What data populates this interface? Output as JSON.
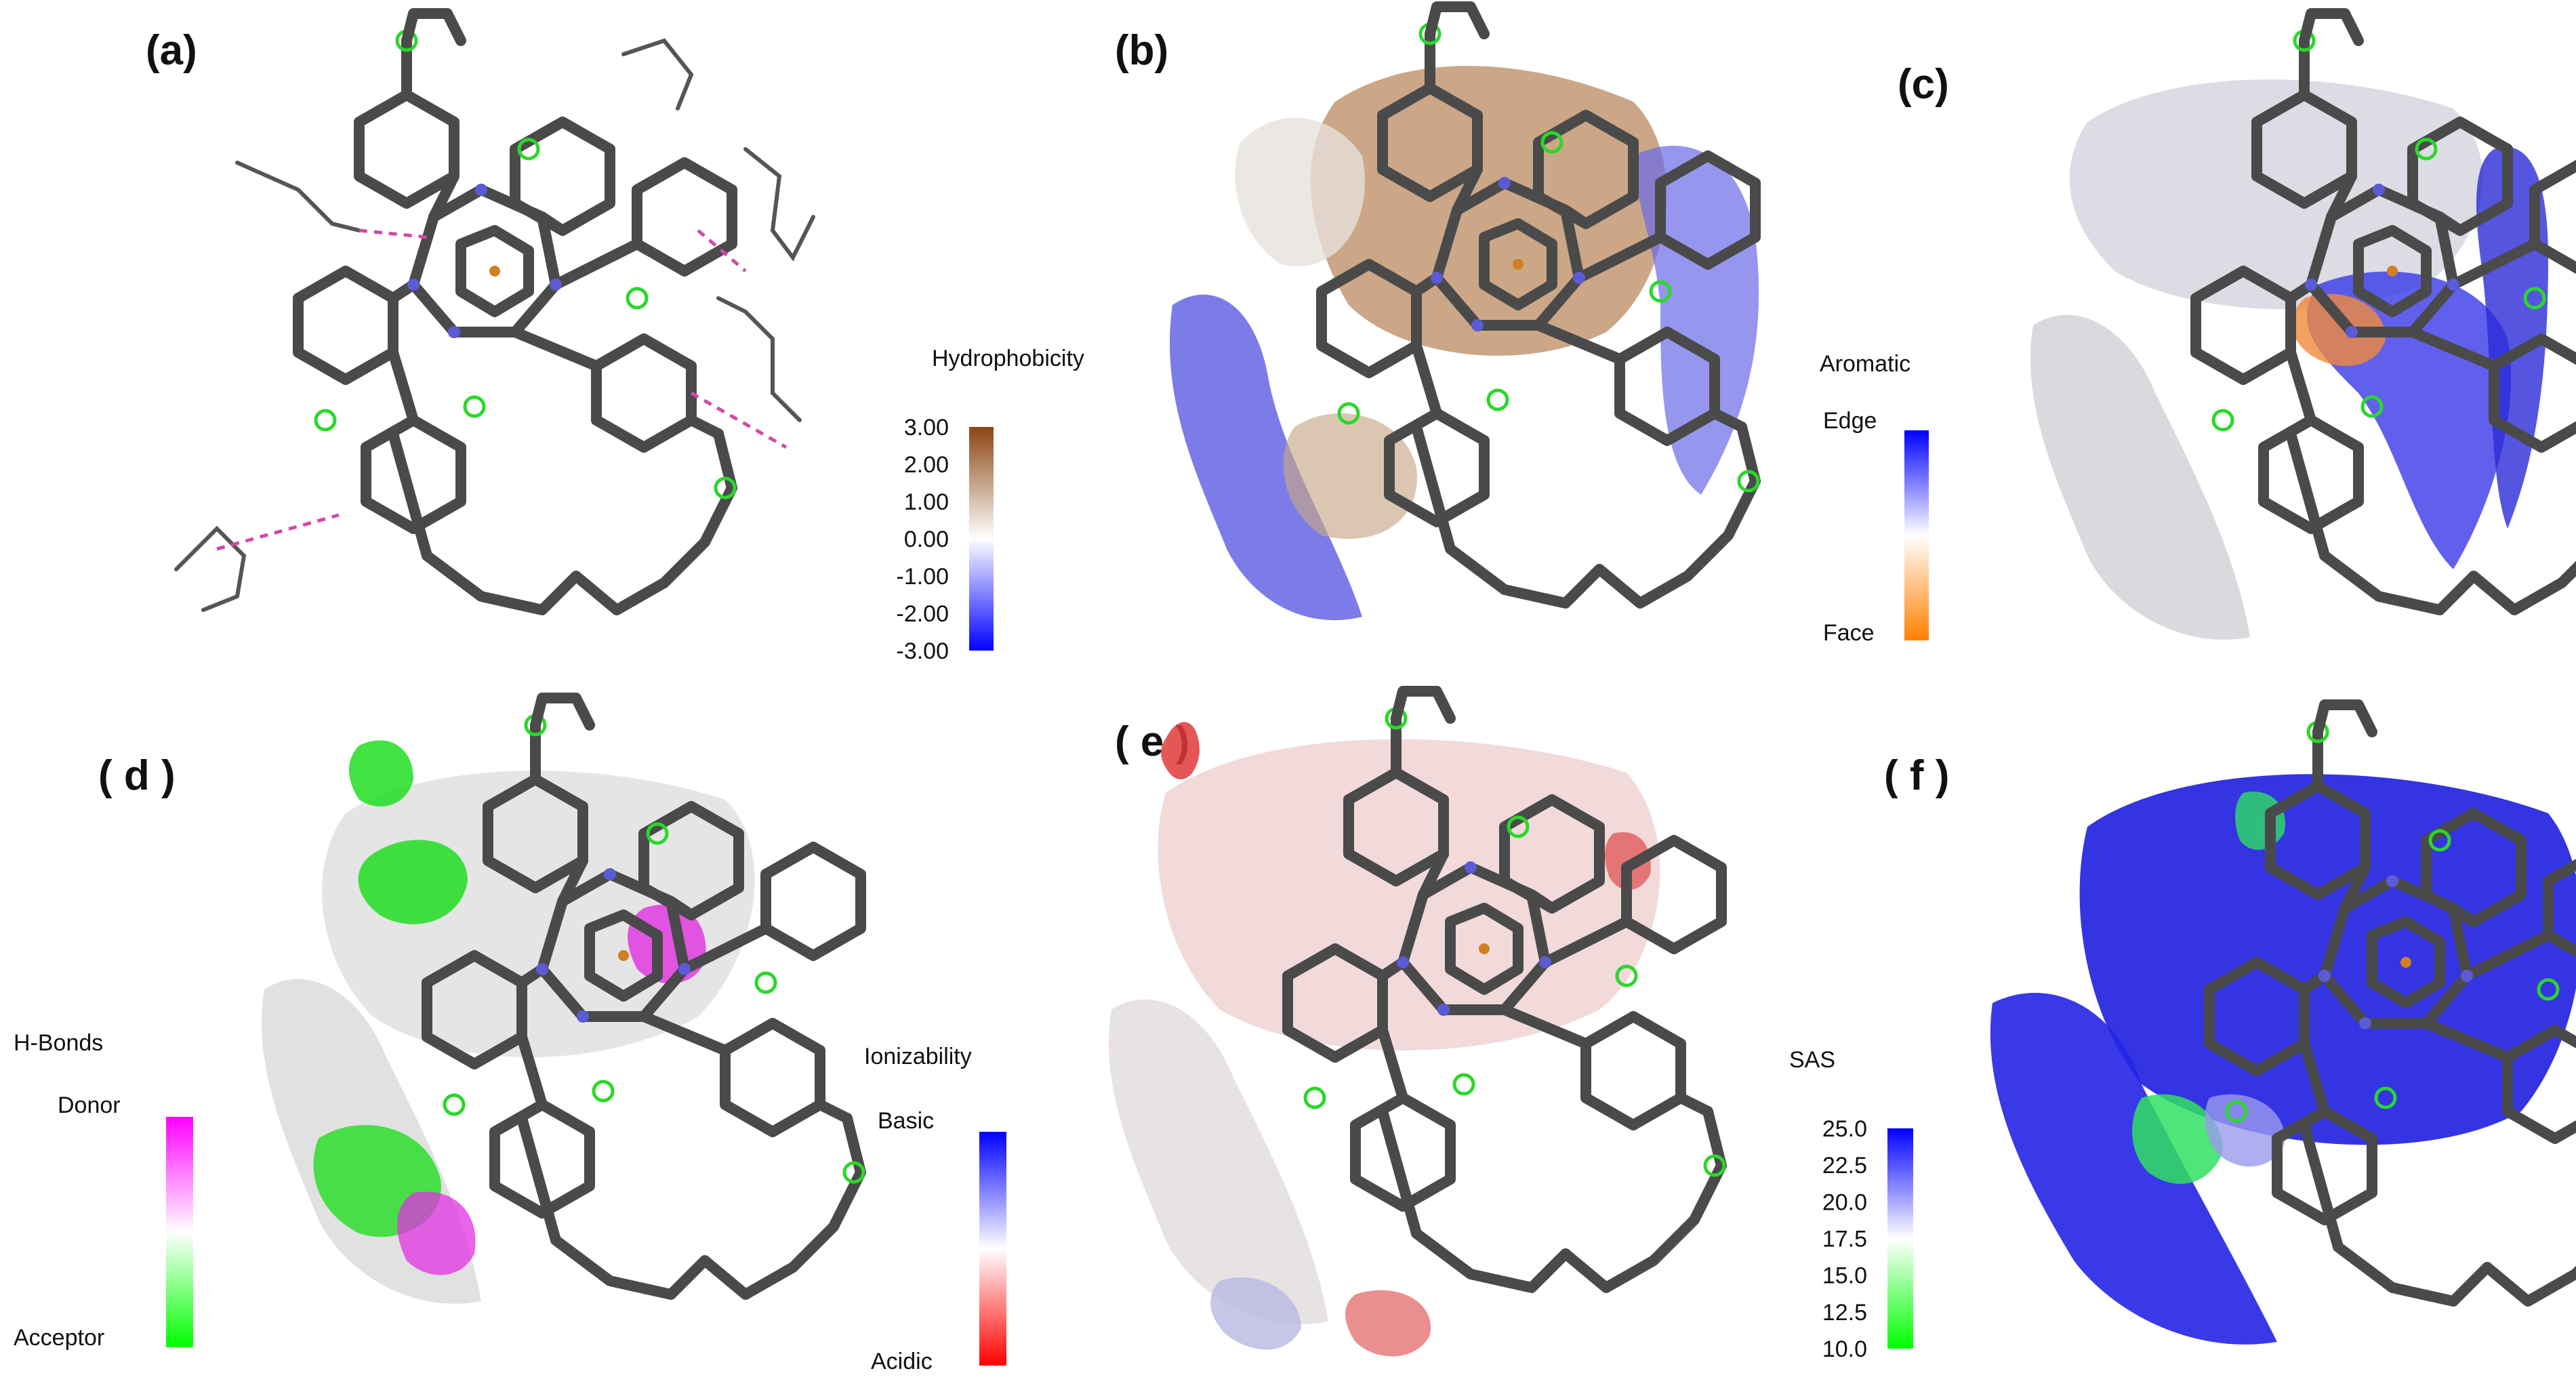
{
  "panels": [
    {
      "id": "a",
      "label": "(a)"
    },
    {
      "id": "b",
      "label": "(b)",
      "surface": "hydrophobicity"
    },
    {
      "id": "c",
      "label": "(c)",
      "surface": "aromatic"
    },
    {
      "id": "d",
      "label": "( d )",
      "surface": "hbonds"
    },
    {
      "id": "e",
      "label": "( e )",
      "surface": "ionizability"
    },
    {
      "id": "f",
      "label": "( f )",
      "surface": "sas"
    }
  ],
  "colorbars": {
    "hydrophobicity": {
      "title": "Hydrophobicity",
      "ticks": [
        "3.00",
        "2.00",
        "1.00",
        "0.00",
        "-1.00",
        "-2.00",
        "-3.00"
      ],
      "colors": [
        "#8b4513",
        "#ffffff",
        "#0000ff"
      ]
    },
    "aromatic": {
      "title": "Aromatic",
      "top_label": "Edge",
      "bottom_label": "Face",
      "colors": [
        "#0000ff",
        "#ffffff",
        "#ff8000"
      ]
    },
    "hbonds": {
      "title": "H-Bonds",
      "top_label": "Donor",
      "bottom_label": "Acceptor",
      "colors": [
        "#ff00ff",
        "#ffffff",
        "#00ff00"
      ]
    },
    "ionizability": {
      "title": "Ionizability",
      "top_label": "Basic",
      "bottom_label": "Acidic",
      "colors": [
        "#0000ff",
        "#ffffff",
        "#ff0000"
      ]
    },
    "sas": {
      "title": "SAS",
      "ticks": [
        "25.0",
        "22.5",
        "20.0",
        "17.5",
        "15.0",
        "12.5",
        "10.0"
      ],
      "colors": [
        "#0000ff",
        "#ffffff",
        "#00ff00"
      ]
    }
  },
  "surface_colors": {
    "hydrophobicity": [
      "#b07a50",
      "#e8e2dc",
      "#3a3ae0"
    ],
    "aromatic": [
      "#d8d8e4",
      "#3b3be8",
      "#f09040"
    ],
    "hbonds": [
      "#e4e4e4",
      "#26e026",
      "#e030e0"
    ],
    "ionizability": [
      "#f2d8d8",
      "#e04040",
      "#c8c8e8"
    ],
    "sas": [
      "#1a1ae0",
      "#3030f0",
      "#30e060"
    ]
  }
}
